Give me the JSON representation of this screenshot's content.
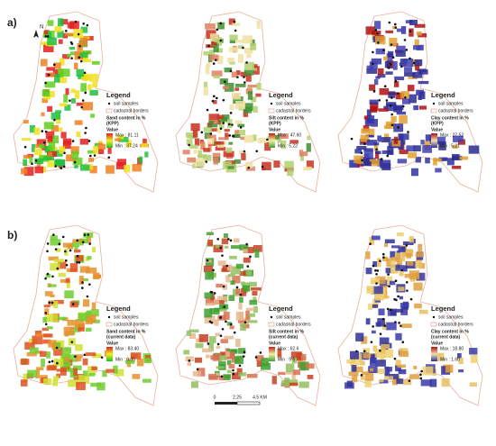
{
  "north": "N",
  "rows": [
    {
      "label": "a)",
      "panels": [
        {
          "legend": {
            "title": "Legend",
            "samples": "soil samples",
            "borders": "cadastral borders",
            "variable": "Sand content in %",
            "source": "(KPP)",
            "value": "Value",
            "max": "Max : 81.11",
            "min": "Min : 37.24"
          }
        },
        {
          "legend": {
            "title": "Legend",
            "samples": "soil samples",
            "borders": "cadastral borders",
            "variable": "Silt content in %",
            "source": "(KPP)",
            "value": "Value",
            "max": "Max : 47.60",
            "min": "Min : 5.22"
          }
        },
        {
          "legend": {
            "title": "Legend",
            "samples": "soil samples",
            "borders": "cadastral borders",
            "variable": "Clay content in %",
            "source": "(KPP)",
            "value": "Value",
            "max": "Max : 27.52",
            "min": "Min : 5.21"
          }
        }
      ]
    },
    {
      "label": "b)",
      "panels": [
        {
          "legend": {
            "title": "Legend",
            "samples": "soil samples",
            "borders": "cadastral borders",
            "variable": "Sand content in %",
            "source": "(current data)",
            "value": "Value",
            "max": "Max : 83.40",
            "min": "Min : 0.30"
          }
        },
        {
          "legend": {
            "title": "Legend",
            "samples": "soil samples",
            "borders": "cadastral borders",
            "variable": "Silt content in %",
            "source": "(current data)",
            "value": "Value",
            "max": "Max : 62.6",
            "min": "Min : 9.6"
          }
        },
        {
          "legend": {
            "title": "Legend",
            "samples": "soil samples",
            "borders": "cadastral borders",
            "variable": "Clay content in %",
            "source": "(current data)",
            "value": "Value",
            "max": "Max : 18.80",
            "min": "Min : 1.60"
          }
        }
      ]
    }
  ],
  "scale": {
    "ticks": [
      "0",
      "2.25",
      "4.5 KM"
    ]
  }
}
